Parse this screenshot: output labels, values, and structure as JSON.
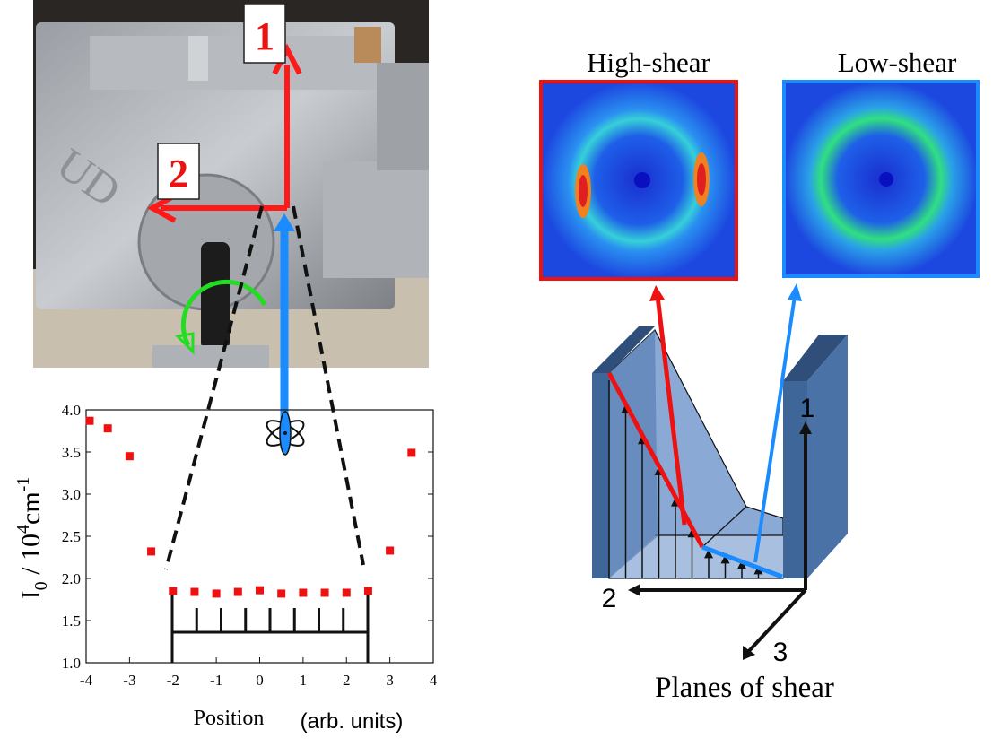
{
  "photo": {
    "axis_label_1": "1",
    "axis_label_2": "2",
    "logo_text": "UD",
    "colors": {
      "axis_arrow": "#ff1a1a",
      "beam": "#1a8cff",
      "rotation_arrow": "#22dd22"
    }
  },
  "scattering": {
    "high_shear_title": "High-shear",
    "low_shear_title": "Low-shear",
    "colors": {
      "high_frame": "#ee1111",
      "low_frame": "#1a8cff"
    }
  },
  "diagram": {
    "axis_1": "1",
    "axis_2": "2",
    "axis_3": "3",
    "caption": "Planes of shear",
    "colors": {
      "wall": "#4a72a6",
      "fluid": "#8aa9d4"
    }
  },
  "chart_data": {
    "type": "scatter",
    "xlabel": "Position",
    "xlabel_units": "(arb. units)",
    "ylabel_main": "I",
    "ylabel_sub": "0",
    "ylabel_rest": " / 10",
    "ylabel_sup": "4",
    "ylabel_unit": "cm",
    "ylabel_unit_sup": "-1",
    "xlim": [
      -4,
      4
    ],
    "ylim": [
      1.0,
      4.0
    ],
    "xticks": [
      "-4",
      "-3",
      "-2",
      "-1",
      "0",
      "1",
      "2",
      "3",
      "4"
    ],
    "yticks": [
      "1.0",
      "1.5",
      "2.0",
      "2.5",
      "3.0",
      "3.5",
      "4.0"
    ],
    "grid": false,
    "marker_color": "#ee1111",
    "x": [
      -4,
      -3.5,
      -3,
      -2.5,
      -2,
      -1.5,
      -1,
      -0.5,
      0,
      0.5,
      1,
      1.5,
      2,
      2.5,
      3,
      3.5
    ],
    "y": [
      3.87,
      3.78,
      3.45,
      2.32,
      1.85,
      1.84,
      1.82,
      1.84,
      1.86,
      1.82,
      1.83,
      1.83,
      1.83,
      1.85,
      2.33,
      3.49
    ]
  }
}
